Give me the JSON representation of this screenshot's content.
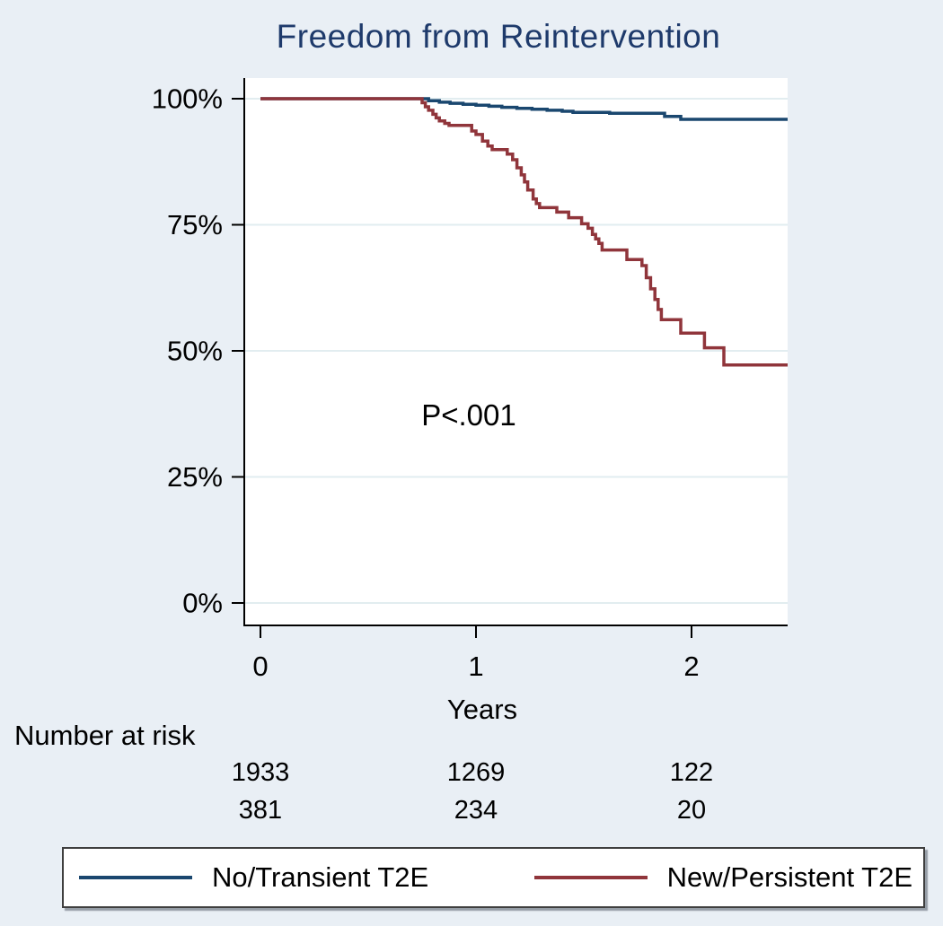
{
  "title": "Freedom from Reintervention",
  "annotation": {
    "p_value": "P<.001"
  },
  "axes": {
    "x_label": "Years"
  },
  "risk_table_label": "Number at risk",
  "colors": {
    "background": "#e9eff5",
    "plot_background": "#ffffff",
    "grid": "#e2edf0",
    "axis": "#000000",
    "title": "#1e3a6b",
    "curve_no_transient": "#1a476f",
    "curve_new_persistent": "#90353b"
  },
  "legend": {
    "entries": [
      {
        "label": "No/Transient T2E",
        "color": "#1a476f"
      },
      {
        "label": "New/Persistent T2E",
        "color": "#90353b"
      }
    ]
  },
  "chart_data": {
    "type": "line",
    "subtype": "kaplan-meier-step",
    "title": "Freedom from Reintervention",
    "xlabel": "Years",
    "ylabel": "",
    "xlim": [
      0,
      2.45
    ],
    "ylim": [
      0,
      100
    ],
    "xticks": [
      0,
      1,
      2
    ],
    "yticks": [
      {
        "value": 100,
        "label": "100%"
      },
      {
        "value": 75,
        "label": "75%"
      },
      {
        "value": 50,
        "label": "50%"
      },
      {
        "value": 25,
        "label": "25%"
      },
      {
        "value": 0,
        "label": "0%"
      }
    ],
    "grid": "horizontal",
    "annotation": "P<.001",
    "legend_position": "bottom",
    "series": [
      {
        "name": "No/Transient T2E",
        "color": "#1a476f",
        "points": [
          [
            0,
            100
          ],
          [
            0.75,
            100
          ],
          [
            0.78,
            99.6
          ],
          [
            0.83,
            99.3
          ],
          [
            0.88,
            99.1
          ],
          [
            0.94,
            98.9
          ],
          [
            1.0,
            98.7
          ],
          [
            1.06,
            98.5
          ],
          [
            1.12,
            98.3
          ],
          [
            1.19,
            98.1
          ],
          [
            1.26,
            97.9
          ],
          [
            1.33,
            97.7
          ],
          [
            1.4,
            97.5
          ],
          [
            1.45,
            97.3
          ],
          [
            1.62,
            97.1
          ],
          [
            1.875,
            96.5
          ],
          [
            1.95,
            95.9
          ],
          [
            2.45,
            95.9
          ]
        ]
      },
      {
        "name": "New/Persistent T2E",
        "color": "#90353b",
        "points": [
          [
            0,
            100
          ],
          [
            0.73,
            100
          ],
          [
            0.75,
            99.2
          ],
          [
            0.765,
            98.4
          ],
          [
            0.78,
            97.7
          ],
          [
            0.8,
            96.9
          ],
          [
            0.815,
            96.2
          ],
          [
            0.83,
            95.6
          ],
          [
            0.855,
            95.1
          ],
          [
            0.875,
            94.7
          ],
          [
            0.98,
            93.6
          ],
          [
            1.0,
            92.9
          ],
          [
            1.03,
            91.6
          ],
          [
            1.055,
            90.6
          ],
          [
            1.075,
            89.9
          ],
          [
            1.145,
            89.0
          ],
          [
            1.17,
            87.9
          ],
          [
            1.19,
            86.3
          ],
          [
            1.21,
            84.9
          ],
          [
            1.225,
            83.5
          ],
          [
            1.24,
            81.9
          ],
          [
            1.265,
            80.1
          ],
          [
            1.28,
            79.2
          ],
          [
            1.295,
            78.4
          ],
          [
            1.375,
            77.5
          ],
          [
            1.43,
            76.4
          ],
          [
            1.49,
            75.2
          ],
          [
            1.52,
            74.3
          ],
          [
            1.54,
            73.1
          ],
          [
            1.555,
            72.2
          ],
          [
            1.57,
            71.3
          ],
          [
            1.585,
            70.0
          ],
          [
            1.7,
            68.1
          ],
          [
            1.77,
            66.9
          ],
          [
            1.79,
            64.5
          ],
          [
            1.81,
            62.3
          ],
          [
            1.83,
            60.2
          ],
          [
            1.845,
            58.2
          ],
          [
            1.86,
            56.2
          ],
          [
            1.95,
            53.5
          ],
          [
            2.06,
            50.6
          ],
          [
            2.15,
            47.2
          ],
          [
            2.45,
            47.2
          ]
        ]
      }
    ],
    "number_at_risk": {
      "label": "Number at risk",
      "times": [
        0,
        1,
        2
      ],
      "groups": [
        {
          "name": "No/Transient T2E",
          "counts": [
            "1933",
            "1269",
            "122"
          ]
        },
        {
          "name": "New/Persistent T2E",
          "counts": [
            "381",
            "234",
            "20"
          ]
        }
      ]
    }
  }
}
